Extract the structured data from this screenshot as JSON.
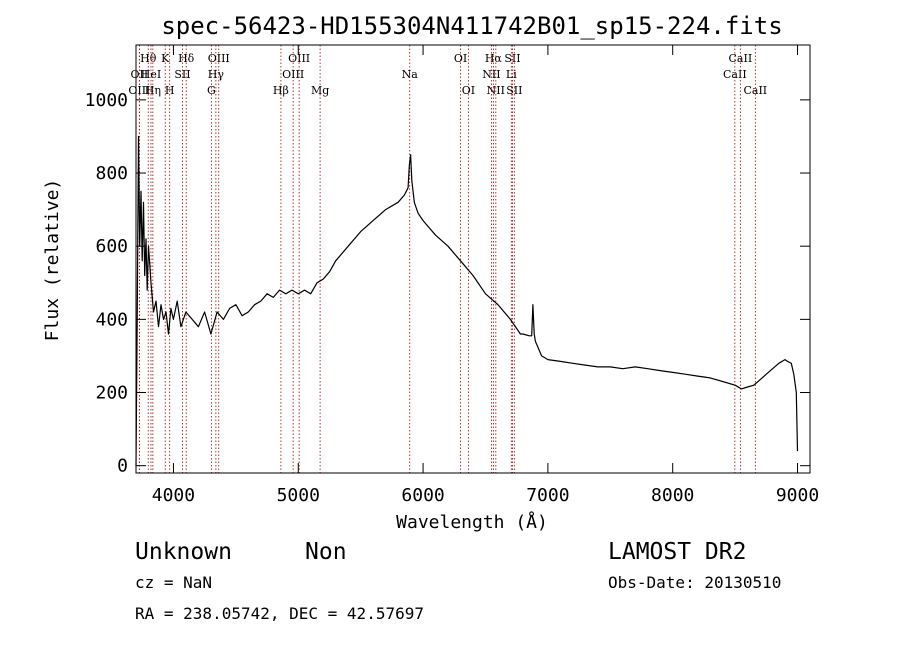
{
  "chart_data": {
    "type": "line",
    "title": "spec-56423-HD155304N411742B01_sp15-224.fits",
    "xlabel": "Wavelength (Å)",
    "ylabel": "Flux (relative)",
    "xlim": [
      3700,
      9100
    ],
    "ylim": [
      -20,
      1150
    ],
    "x_ticks": [
      4000,
      5000,
      6000,
      7000,
      8000,
      9000
    ],
    "y_ticks": [
      0,
      200,
      400,
      600,
      800,
      1000
    ],
    "grid": false,
    "line_color": "#000000",
    "marker_color": "#a80000",
    "series": [
      {
        "x": [
          3700,
          3710,
          3720,
          3730,
          3740,
          3750,
          3760,
          3770,
          3780,
          3790,
          3800,
          3820,
          3840,
          3860,
          3880,
          3900,
          3920,
          3940,
          3960,
          3980,
          4000,
          4030,
          4060,
          4100,
          4150,
          4200,
          4250,
          4300,
          4350,
          4400,
          4450,
          4500,
          4550,
          4600,
          4650,
          4700,
          4750,
          4800,
          4850,
          4900,
          4950,
          5000,
          5050,
          5100,
          5150,
          5200,
          5250,
          5300,
          5400,
          5500,
          5600,
          5700,
          5800,
          5850,
          5880,
          5890,
          5900,
          5910,
          5930,
          5960,
          6000,
          6050,
          6100,
          6200,
          6300,
          6400,
          6500,
          6600,
          6700,
          6780,
          6800,
          6850,
          6870,
          6880,
          6890,
          6900,
          6950,
          7000,
          7100,
          7200,
          7300,
          7400,
          7500,
          7600,
          7700,
          7800,
          7900,
          8000,
          8100,
          8200,
          8300,
          8400,
          8500,
          8550,
          8600,
          8650,
          8700,
          8750,
          8800,
          8850,
          8900,
          8920,
          8950,
          8970,
          8990,
          9000
        ],
        "y": [
          0,
          400,
          900,
          600,
          750,
          560,
          720,
          520,
          620,
          480,
          600,
          500,
          420,
          450,
          380,
          440,
          400,
          420,
          360,
          430,
          400,
          450,
          380,
          420,
          400,
          380,
          420,
          360,
          420,
          400,
          430,
          440,
          410,
          420,
          440,
          450,
          470,
          460,
          480,
          470,
          480,
          470,
          480,
          470,
          500,
          510,
          530,
          560,
          600,
          640,
          670,
          700,
          720,
          740,
          760,
          820,
          850,
          780,
          720,
          690,
          670,
          650,
          630,
          600,
          560,
          520,
          470,
          440,
          400,
          360,
          360,
          355,
          355,
          440,
          360,
          340,
          300,
          290,
          285,
          280,
          275,
          270,
          270,
          265,
          270,
          265,
          260,
          255,
          250,
          245,
          240,
          230,
          220,
          210,
          215,
          220,
          235,
          250,
          265,
          280,
          290,
          285,
          280,
          250,
          200,
          40
        ]
      }
    ],
    "lines": [
      {
        "name": "OII",
        "wavelength": 3727,
        "row": 2
      },
      {
        "name": "OIII",
        "wavelength": 3727,
        "row": 3
      },
      {
        "name": "Hθ",
        "wavelength": 3798,
        "row": 1
      },
      {
        "name": "HeI",
        "wavelength": 3820,
        "row": 2
      },
      {
        "name": "Hη",
        "wavelength": 3835,
        "row": 3
      },
      {
        "name": "K",
        "wavelength": 3934,
        "row": 1
      },
      {
        "name": "H",
        "wavelength": 3970,
        "row": 3
      },
      {
        "name": "SII",
        "wavelength": 4072,
        "row": 2
      },
      {
        "name": "Hδ",
        "wavelength": 4102,
        "row": 1
      },
      {
        "name": "G",
        "wavelength": 4304,
        "row": 3
      },
      {
        "name": "Hγ",
        "wavelength": 4340,
        "row": 2
      },
      {
        "name": "OIII",
        "wavelength": 4363,
        "row": 1
      },
      {
        "name": "Hβ",
        "wavelength": 4861,
        "row": 3
      },
      {
        "name": "OIII",
        "wavelength": 4959,
        "row": 2
      },
      {
        "name": "OIII",
        "wavelength": 5007,
        "row": 1
      },
      {
        "name": "Mg",
        "wavelength": 5175,
        "row": 3
      },
      {
        "name": "Na",
        "wavelength": 5893,
        "row": 2
      },
      {
        "name": "OI",
        "wavelength": 6300,
        "row": 1
      },
      {
        "name": "OI",
        "wavelength": 6363,
        "row": 3
      },
      {
        "name": "NII",
        "wavelength": 6548,
        "row": 2
      },
      {
        "name": "NII",
        "wavelength": 6583,
        "row": 3
      },
      {
        "name": "Hα",
        "wavelength": 6563,
        "row": 1
      },
      {
        "name": "Li",
        "wavelength": 6707,
        "row": 2
      },
      {
        "name": "SII",
        "wavelength": 6716,
        "row": 1
      },
      {
        "name": "SII",
        "wavelength": 6731,
        "row": 3
      },
      {
        "name": "CaII",
        "wavelength": 8498,
        "row": 2
      },
      {
        "name": "CaII",
        "wavelength": 8542,
        "row": 1
      },
      {
        "name": "CaII",
        "wavelength": 8662,
        "row": 3
      }
    ]
  },
  "info": {
    "class": "Unknown",
    "subclass": "Non",
    "redshift": "cz = NaN",
    "coords": "RA = 238.05742, DEC =  42.57697",
    "survey": "LAMOST DR2",
    "obs_date": "Obs-Date: 20130510"
  }
}
